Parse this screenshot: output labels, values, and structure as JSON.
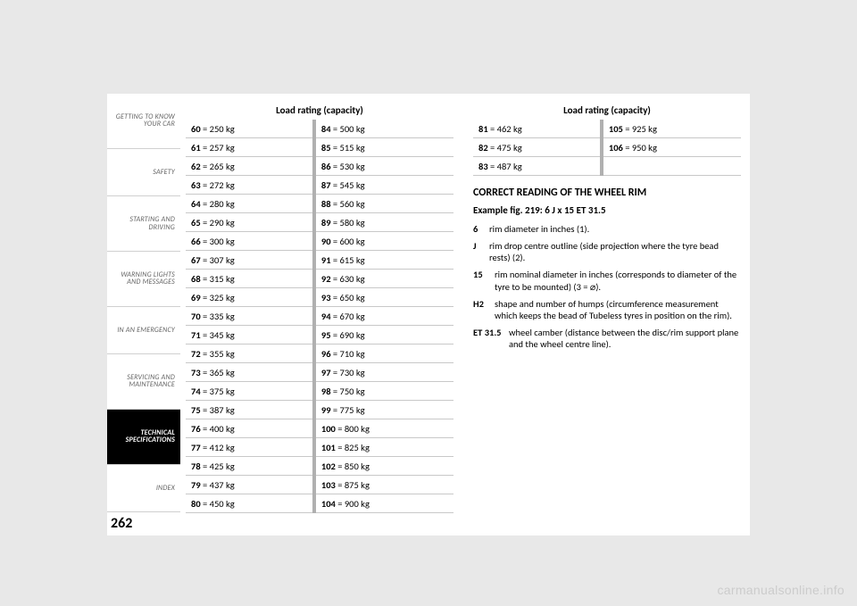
{
  "sidebar": {
    "items": [
      {
        "label": "GETTING TO KNOW\nYOUR CAR"
      },
      {
        "label": "SAFETY"
      },
      {
        "label": "STARTING AND\nDRIVING"
      },
      {
        "label": "WARNING LIGHTS\nAND MESSAGES"
      },
      {
        "label": "IN AN EMERGENCY"
      },
      {
        "label": "SERVICING AND\nMAINTENANCE"
      },
      {
        "label": "TECHNICAL\nSPECIFICATIONS"
      },
      {
        "label": "INDEX"
      }
    ],
    "active_index": 6,
    "page_number": "262"
  },
  "table1": {
    "title": "Load rating (capacity)",
    "left": [
      {
        "k": "60",
        "v": "= 250 kg"
      },
      {
        "k": "61",
        "v": "= 257 kg"
      },
      {
        "k": "62",
        "v": "= 265 kg"
      },
      {
        "k": "63",
        "v": "= 272 kg"
      },
      {
        "k": "64",
        "v": "= 280 kg"
      },
      {
        "k": "65",
        "v": "= 290 kg"
      },
      {
        "k": "66",
        "v": "= 300 kg"
      },
      {
        "k": "67",
        "v": "= 307 kg"
      },
      {
        "k": "68",
        "v": "= 315 kg"
      },
      {
        "k": "69",
        "v": "= 325 kg"
      },
      {
        "k": "70",
        "v": "= 335 kg"
      },
      {
        "k": "71",
        "v": "= 345 kg"
      },
      {
        "k": "72",
        "v": "= 355 kg"
      },
      {
        "k": "73",
        "v": "= 365 kg"
      },
      {
        "k": "74",
        "v": "= 375 kg"
      },
      {
        "k": "75",
        "v": "= 387 kg"
      },
      {
        "k": "76",
        "v": "= 400 kg"
      },
      {
        "k": "77",
        "v": "= 412 kg"
      },
      {
        "k": "78",
        "v": "= 425 kg"
      },
      {
        "k": "79",
        "v": "= 437 kg"
      },
      {
        "k": "80",
        "v": "= 450 kg"
      }
    ],
    "right": [
      {
        "k": "84",
        "v": "= 500 kg"
      },
      {
        "k": "85",
        "v": "= 515 kg"
      },
      {
        "k": "86",
        "v": "= 530 kg"
      },
      {
        "k": "87",
        "v": "= 545 kg"
      },
      {
        "k": "88",
        "v": "= 560 kg"
      },
      {
        "k": "89",
        "v": "= 580 kg"
      },
      {
        "k": "90",
        "v": "= 600 kg"
      },
      {
        "k": "91",
        "v": "= 615 kg"
      },
      {
        "k": "92",
        "v": "= 630 kg"
      },
      {
        "k": "93",
        "v": "= 650 kg"
      },
      {
        "k": "94",
        "v": "= 670 kg"
      },
      {
        "k": "95",
        "v": "= 690 kg"
      },
      {
        "k": "96",
        "v": "= 710 kg"
      },
      {
        "k": "97",
        "v": "= 730 kg"
      },
      {
        "k": "98",
        "v": "= 750 kg"
      },
      {
        "k": "99",
        "v": "= 775 kg"
      },
      {
        "k": "100",
        "v": "= 800 kg"
      },
      {
        "k": "101",
        "v": "= 825 kg"
      },
      {
        "k": "102",
        "v": "= 850 kg"
      },
      {
        "k": "103",
        "v": "= 875 kg"
      },
      {
        "k": "104",
        "v": "= 900 kg"
      }
    ]
  },
  "table2": {
    "title": "Load rating (capacity)",
    "left": [
      {
        "k": "81",
        "v": "= 462 kg"
      },
      {
        "k": "82",
        "v": "= 475 kg"
      },
      {
        "k": "83",
        "v": "= 487 kg"
      }
    ],
    "right": [
      {
        "k": "105",
        "v": "= 925 kg"
      },
      {
        "k": "106",
        "v": "= 950 kg"
      },
      {
        "k": "",
        "v": ""
      }
    ]
  },
  "heading_correct": "CORRECT READING OF THE WHEEL RIM",
  "heading_example": "Example fig. 219: 6 J x 15 ET 31.5",
  "defs": [
    {
      "key": "6",
      "txt": "rim diameter in inches (1).",
      "cls": "narrow"
    },
    {
      "key": "J",
      "txt": "rim drop centre outline (side projection where the tyre bead rests) (2).",
      "cls": "narrow"
    },
    {
      "key": "15",
      "txt": "rim nominal diameter in inches (corresponds to diameter of the tyre to be mounted) (3 = ⌀).",
      "cls": "mid"
    },
    {
      "key": "H2",
      "txt": "shape and number of humps (circumference measurement which keeps the bead of Tubeless tyres in position on the rim).",
      "cls": "mid"
    },
    {
      "key": "ET 31.5",
      "txt": "wheel camber (distance between the disc/rim support plane and the wheel centre line).",
      "cls": ""
    }
  ],
  "watermark": "carmanualsonline.info",
  "colors": {
    "page_bg": "#ffffff",
    "outer_bg": "#e8e8e8",
    "active_tab_bg": "#000000",
    "active_tab_fg": "#ffffff",
    "tab_fg": "#666666",
    "border": "#c8c8c8",
    "sep_border": "#b0b0b0",
    "watermark_fg": "#cccccc"
  }
}
